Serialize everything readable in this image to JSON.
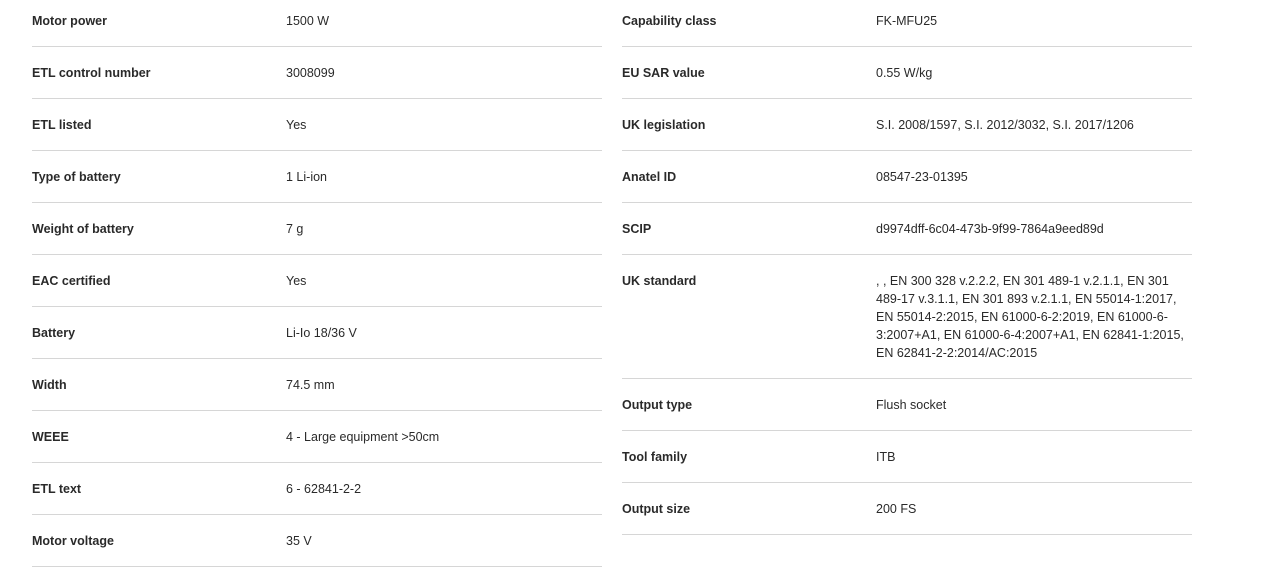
{
  "left": [
    {
      "label": "Motor power",
      "value": "1500 W"
    },
    {
      "label": "ETL control number",
      "value": "3008099"
    },
    {
      "label": "ETL listed",
      "value": "Yes"
    },
    {
      "label": "Type of battery",
      "value": "1 Li-ion"
    },
    {
      "label": "Weight of battery",
      "value": "7 g"
    },
    {
      "label": "EAC certified",
      "value": "Yes"
    },
    {
      "label": "Battery",
      "value": "Li-Io 18/36 V"
    },
    {
      "label": "Width",
      "value": "74.5 mm"
    },
    {
      "label": "WEEE",
      "value": "4 - Large equipment >50cm"
    },
    {
      "label": "ETL text",
      "value": "6 - 62841-2-2"
    },
    {
      "label": "Motor voltage",
      "value": "35 V"
    }
  ],
  "right": [
    {
      "label": "Capability class",
      "value": "FK-MFU25"
    },
    {
      "label": "EU SAR value",
      "value": "0.55 W/kg"
    },
    {
      "label": "UK legislation",
      "value": "S.I. 2008/1597, S.I. 2012/3032, S.I. 2017/1206"
    },
    {
      "label": "Anatel ID",
      "value": "08547-23-01395"
    },
    {
      "label": "SCIP",
      "value": "d9974dff-6c04-473b-9f99-7864a9eed89d"
    },
    {
      "label": "UK standard",
      "value": ", , EN 300 328 v.2.2.2, EN 301 489-1 v.2.1.1, EN 301 489-17 v.3.1.1, EN 301 893 v.2.1.1, EN 55014-1:2017, EN 55014-2:2015, EN 61000-6-2:2019, EN 61000-6-3:2007+A1, EN 61000-6-4:2007+A1, EN 62841-1:2015, EN 62841-2-2:2014/AC:2015"
    },
    {
      "label": "Output type",
      "value": "Flush socket"
    },
    {
      "label": "Tool family",
      "value": "ITB"
    },
    {
      "label": "Output size",
      "value": "200 FS"
    }
  ]
}
